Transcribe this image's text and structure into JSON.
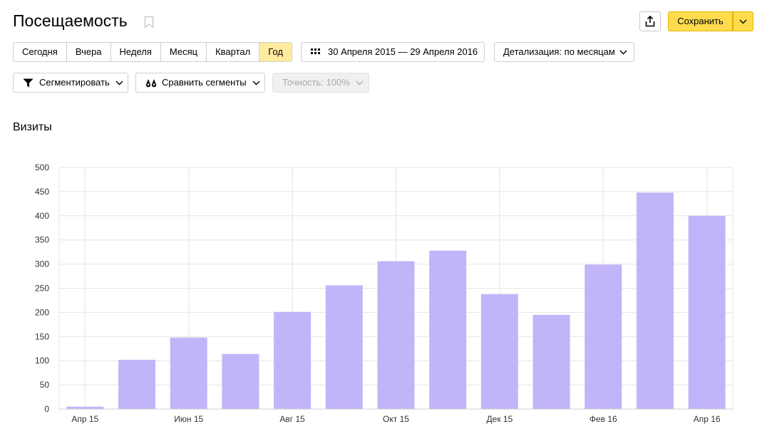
{
  "page": {
    "title": "Посещаемость",
    "save_label": "Сохранить"
  },
  "periods": [
    {
      "label": "Сегодня",
      "active": false
    },
    {
      "label": "Вчера",
      "active": false
    },
    {
      "label": "Неделя",
      "active": false
    },
    {
      "label": "Месяц",
      "active": false
    },
    {
      "label": "Квартал",
      "active": false
    },
    {
      "label": "Год",
      "active": true
    }
  ],
  "date_range": {
    "text": "30 Апреля 2015 — 29 Апреля 2016",
    "icon": "calendar-icon"
  },
  "detail": {
    "label": "Детализация: по месяцам"
  },
  "segment": {
    "label": "Сегментировать",
    "icon": "filter-icon"
  },
  "compare": {
    "label": "Сравнить сегменты",
    "icon": "compare-icon"
  },
  "accuracy": {
    "label": "Точность: 100%",
    "disabled": true
  },
  "section_title": "Визиты",
  "colors": {
    "bar": "#c2b4f8",
    "accent": "#ffdb4d",
    "active_period": "#ffeba0"
  },
  "chart_data": {
    "type": "bar",
    "categories": [
      "Апр 15",
      "",
      "Июн 15",
      "",
      "Авг 15",
      "",
      "Окт 15",
      "",
      "Дек 15",
      "",
      "Фев 16",
      "",
      "Апр 16"
    ],
    "values": [
      5,
      102,
      148,
      114,
      201,
      256,
      306,
      328,
      238,
      195,
      299,
      448,
      400
    ],
    "y_ticks": [
      0,
      50,
      100,
      150,
      200,
      250,
      300,
      350,
      400,
      450,
      500
    ],
    "ylim": [
      0,
      500
    ],
    "grid": true
  }
}
